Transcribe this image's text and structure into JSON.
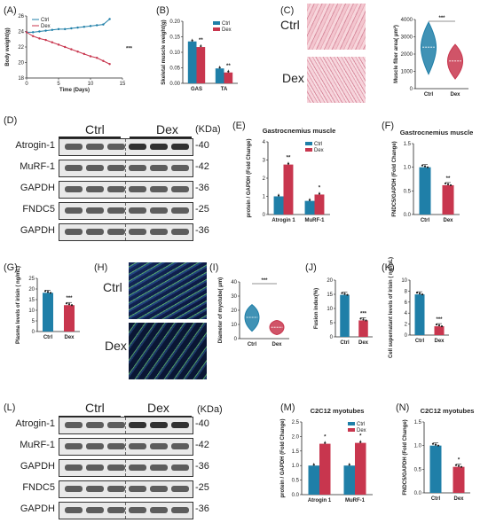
{
  "colors": {
    "ctrl": "#1f7fa8",
    "dex": "#c8364e",
    "ctrl_dark": "#16587a",
    "dex_dark": "#96243a"
  },
  "labels": {
    "A": "(A)",
    "B": "(B)",
    "C": "(C)",
    "D": "(D)",
    "E": "(E)",
    "F": "(F)",
    "G": "(G)",
    "H": "(H)",
    "I": "(I)",
    "J": "(J)",
    "K": "(K)",
    "L": "(L)",
    "M": "(M)",
    "N": "(N)"
  },
  "images": {
    "C_ctrl": "Ctrl",
    "C_dex": "Dex",
    "H_ctrl": "Ctrl",
    "H_dex": "Dex"
  },
  "western_D": {
    "kda": "(KDa)",
    "group1": "Ctrl",
    "group2": "Dex",
    "rows": [
      {
        "name": "Atrogin-1",
        "kda": "-40"
      },
      {
        "name": "MuRF-1",
        "kda": "-42"
      },
      {
        "name": "GAPDH",
        "kda": "-36"
      },
      {
        "name": "FNDC5",
        "kda": "-25"
      },
      {
        "name": "GAPDH",
        "kda": "-36"
      }
    ]
  },
  "western_L": {
    "kda": "(KDa)",
    "group1": "Ctrl",
    "group2": "Dex",
    "rows": [
      {
        "name": "Atrogin-1",
        "kda": "-40"
      },
      {
        "name": "MuRF-1",
        "kda": "-42"
      },
      {
        "name": "GAPDH",
        "kda": "-36"
      },
      {
        "name": "FNDC5",
        "kda": "-25"
      },
      {
        "name": "GAPDH",
        "kda": "-36"
      }
    ]
  },
  "chart_data": [
    {
      "id": "A",
      "type": "line",
      "xlabel": "Time (Days)",
      "ylabel": "Body weight(g)",
      "xlim": [
        0,
        15
      ],
      "ylim": [
        18,
        26
      ],
      "xticks": [
        "0",
        "5",
        "10",
        "15"
      ],
      "yticks": [
        "18",
        "20",
        "22",
        "24",
        "26"
      ],
      "legend": [
        "Ctrl",
        "Dex"
      ],
      "sig": "***",
      "series": [
        {
          "name": "Ctrl",
          "x": [
            0,
            1,
            2,
            3,
            4,
            5,
            6,
            7,
            8,
            9,
            10,
            11,
            12,
            13
          ],
          "y": [
            23.9,
            23.9,
            24.0,
            24.1,
            24.2,
            24.3,
            24.3,
            24.4,
            24.5,
            24.6,
            24.7,
            24.8,
            24.9,
            25.6
          ]
        },
        {
          "name": "Dex",
          "x": [
            0,
            1,
            2,
            3,
            4,
            5,
            6,
            7,
            8,
            9,
            10,
            11,
            12,
            13
          ],
          "y": [
            23.9,
            23.4,
            23.1,
            22.9,
            22.6,
            22.3,
            22.0,
            21.7,
            21.4,
            21.1,
            20.8,
            20.6,
            20.2,
            19.8
          ]
        }
      ]
    },
    {
      "id": "B",
      "type": "bar",
      "ylabel": "Skeletal muscle weight(g)",
      "ylim": [
        0,
        0.2
      ],
      "yticks": [
        "0.00",
        "0.05",
        "0.10",
        "0.15",
        "0.20"
      ],
      "categories": [
        "GAS",
        "TA"
      ],
      "legend": [
        "Ctrl",
        "Dex"
      ],
      "series": [
        {
          "name": "Ctrl",
          "values": [
            0.135,
            0.048
          ]
        },
        {
          "name": "Dex",
          "values": [
            0.117,
            0.035
          ]
        }
      ],
      "sig": [
        "**",
        "**"
      ]
    },
    {
      "id": "C",
      "type": "violin",
      "ylabel": "Muscle fiber area( μm²)",
      "ylim": [
        0,
        4000
      ],
      "yticks": [
        "0",
        "1000",
        "2000",
        "3000",
        "4000"
      ],
      "categories": [
        "Ctrl",
        "Dex"
      ],
      "median": [
        2400,
        1600
      ],
      "sig": "***"
    },
    {
      "id": "E",
      "type": "bar",
      "title": "Gastrocnemius muscle",
      "ylabel": "protein / GAPDH (Fold Change)",
      "ylim": [
        0,
        4
      ],
      "yticks": [
        "0",
        "1",
        "2",
        "3",
        "4"
      ],
      "categories": [
        "Atrogin 1",
        "MuRF-1"
      ],
      "legend": [
        "Ctrl",
        "Dex"
      ],
      "series": [
        {
          "name": "Ctrl",
          "values": [
            1.0,
            0.75
          ]
        },
        {
          "name": "Dex",
          "values": [
            2.75,
            1.1
          ]
        }
      ],
      "sig": [
        "**",
        "*"
      ]
    },
    {
      "id": "F",
      "type": "bar",
      "title": "Gastrocnemius muscle",
      "ylabel": "FNDC5/GAPDH (Fold Change)",
      "ylim": [
        0,
        1.5
      ],
      "yticks": [
        "0.0",
        "0.5",
        "1.0",
        "1.5"
      ],
      "categories": [
        "Ctrl",
        "Dex"
      ],
      "values": [
        1.0,
        0.62
      ],
      "sig": "**"
    },
    {
      "id": "G",
      "type": "bar",
      "ylabel": "Plasma levels of irisin ( ng/mL)",
      "ylim": [
        0,
        25
      ],
      "yticks": [
        "0",
        "5",
        "10",
        "15",
        "20",
        "25"
      ],
      "categories": [
        "Ctrl",
        "Dex"
      ],
      "values": [
        18.2,
        12.4
      ],
      "sig": "***"
    },
    {
      "id": "I",
      "type": "violin",
      "ylabel": "Diameter of myotube( μm)",
      "ylim": [
        0,
        40
      ],
      "yticks": [
        "0",
        "10",
        "20",
        "30",
        "40"
      ],
      "categories": [
        "Ctrl",
        "Dex"
      ],
      "median": [
        15,
        8
      ],
      "sig": "***"
    },
    {
      "id": "J",
      "type": "bar",
      "ylabel": "Fusion index(%)",
      "ylim": [
        0,
        20
      ],
      "yticks": [
        "0",
        "5",
        "10",
        "15",
        "20"
      ],
      "categories": [
        "Ctrl",
        "Dex"
      ],
      "values": [
        14.8,
        5.8
      ],
      "sig": "***"
    },
    {
      "id": "K",
      "type": "bar",
      "ylabel": "Cell supernatant levels of irisin ( ng/mL)",
      "ylim": [
        0,
        10
      ],
      "yticks": [
        "0",
        "2",
        "4",
        "6",
        "8",
        "10"
      ],
      "categories": [
        "Ctrl",
        "Dex"
      ],
      "values": [
        7.4,
        1.6
      ],
      "sig": "***"
    },
    {
      "id": "M",
      "type": "bar",
      "title": "C2C12 myotubes",
      "ylabel": "protein / GAPDH (Fold Change)",
      "ylim": [
        0,
        2.5
      ],
      "yticks": [
        "0.0",
        "0.5",
        "1.0",
        "1.5",
        "2.0",
        "2.5"
      ],
      "categories": [
        "Atrogin 1",
        "MuRF-1"
      ],
      "legend": [
        "Ctrl",
        "Dex"
      ],
      "series": [
        {
          "name": "Ctrl",
          "values": [
            1.0,
            1.0
          ]
        },
        {
          "name": "Dex",
          "values": [
            1.75,
            1.78
          ]
        }
      ],
      "sig": [
        "*",
        "*"
      ]
    },
    {
      "id": "N",
      "type": "bar",
      "title": "C2C12 myotubes",
      "ylabel": "FNDC5/GAPDH (Fold Change)",
      "ylim": [
        0,
        1.5
      ],
      "yticks": [
        "0.0",
        "0.5",
        "1.0",
        "1.5"
      ],
      "categories": [
        "Ctrl",
        "Dex"
      ],
      "values": [
        1.0,
        0.55
      ],
      "sig": "*"
    }
  ]
}
